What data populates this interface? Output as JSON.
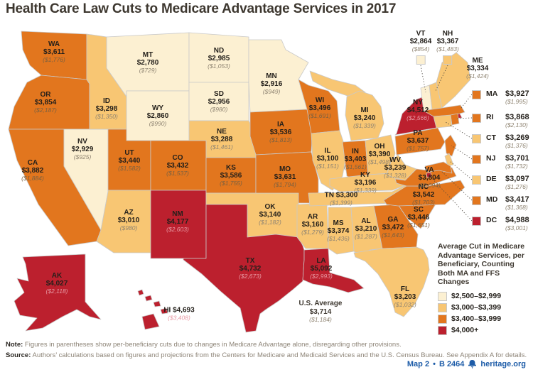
{
  "title": "Health Care Law Cuts to Medicare Advantage Services in 2017",
  "notes": {
    "note_label": "Note:",
    "note_body": "Figures in parentheses show per-beneficiary cuts due to changes in Medicare Advantage alone, disregarding other provisions.",
    "source_label": "Source:",
    "source_body": "Authors’ calculations based on figures and projections from the Centers for Medicare and Medicaid Services and the U.S. Census Bureau. See Appendix A for details."
  },
  "footer": {
    "map_ref": "Map 2",
    "separator": "•",
    "doc_ref": "B 2464",
    "site": "heritage.org",
    "brand_color": "#1d5ca8"
  },
  "chart_data": {
    "type": "choropleth_map",
    "region": "United States",
    "title": "Health Care Law Cuts to Medicare Advantage Services in 2017",
    "unit": "USD per beneficiary",
    "legend_title": "Average Cut in Medicare Advantage Services, per Beneficiary, Counting Both MA and FFS Changes",
    "bands": [
      {
        "label": "$2,500–$2,999",
        "color": "#fcf0d2",
        "min": 2500,
        "max": 2999
      },
      {
        "label": "$3,000–$3,399",
        "color": "#f8c673",
        "min": 3000,
        "max": 3399
      },
      {
        "label": "$3,400–$3,999",
        "color": "#e2761e",
        "min": 3400,
        "max": 3999
      },
      {
        "label": "$4,000+",
        "color": "#bc202e",
        "min": 4000,
        "max": null
      }
    ],
    "us_average": {
      "label": "U.S. Average",
      "cut": 3714,
      "ma_only_cut": 1184
    },
    "states": [
      {
        "abbr": "WA",
        "cut": 3611,
        "ma_only_cut": 1776
      },
      {
        "abbr": "OR",
        "cut": 3854,
        "ma_only_cut": 2187
      },
      {
        "abbr": "CA",
        "cut": 3882,
        "ma_only_cut": 1884
      },
      {
        "abbr": "NV",
        "cut": 2929,
        "ma_only_cut": 925
      },
      {
        "abbr": "ID",
        "cut": 3298,
        "ma_only_cut": 1350
      },
      {
        "abbr": "MT",
        "cut": 2780,
        "ma_only_cut": 729
      },
      {
        "abbr": "WY",
        "cut": 2860,
        "ma_only_cut": 990
      },
      {
        "abbr": "UT",
        "cut": 3440,
        "ma_only_cut": 1582
      },
      {
        "abbr": "CO",
        "cut": 3432,
        "ma_only_cut": 1537
      },
      {
        "abbr": "AZ",
        "cut": 3010,
        "ma_only_cut": 980
      },
      {
        "abbr": "NM",
        "cut": 4177,
        "ma_only_cut": 2603
      },
      {
        "abbr": "ND",
        "cut": 2985,
        "ma_only_cut": 1053
      },
      {
        "abbr": "SD",
        "cut": 2956,
        "ma_only_cut": 980
      },
      {
        "abbr": "NE",
        "cut": 3288,
        "ma_only_cut": 1461
      },
      {
        "abbr": "KS",
        "cut": 3586,
        "ma_only_cut": 1755
      },
      {
        "abbr": "OK",
        "cut": 3140,
        "ma_only_cut": 1182
      },
      {
        "abbr": "TX",
        "cut": 4732,
        "ma_only_cut": 2673
      },
      {
        "abbr": "MN",
        "cut": 2916,
        "ma_only_cut": 949
      },
      {
        "abbr": "IA",
        "cut": 3536,
        "ma_only_cut": 1813
      },
      {
        "abbr": "MO",
        "cut": 3631,
        "ma_only_cut": 1794
      },
      {
        "abbr": "AR",
        "cut": 3160,
        "ma_only_cut": 1279
      },
      {
        "abbr": "LA",
        "cut": 5092,
        "ma_only_cut": 2993
      },
      {
        "abbr": "WI",
        "cut": 3496,
        "ma_only_cut": 1691
      },
      {
        "abbr": "IL",
        "cut": 3100,
        "ma_only_cut": 1151
      },
      {
        "abbr": "IN",
        "cut": 3403,
        "ma_only_cut": 1561
      },
      {
        "abbr": "MI",
        "cut": 3240,
        "ma_only_cut": 1339
      },
      {
        "abbr": "OH",
        "cut": 3390,
        "ma_only_cut": 1498
      },
      {
        "abbr": "KY",
        "cut": 3196,
        "ma_only_cut": 1339
      },
      {
        "abbr": "TN",
        "cut": 3300,
        "ma_only_cut": 1399
      },
      {
        "abbr": "MS",
        "cut": 3374,
        "ma_only_cut": 1436
      },
      {
        "abbr": "AL",
        "cut": 3210,
        "ma_only_cut": 1287
      },
      {
        "abbr": "GA",
        "cut": 3472,
        "ma_only_cut": 1643
      },
      {
        "abbr": "FL",
        "cut": 3203,
        "ma_only_cut": 1032
      },
      {
        "abbr": "SC",
        "cut": 3446,
        "ma_only_cut": 1651
      },
      {
        "abbr": "NC",
        "cut": 3542,
        "ma_only_cut": 1703
      },
      {
        "abbr": "VA",
        "cut": 3804,
        "ma_only_cut": 2094
      },
      {
        "abbr": "WV",
        "cut": 3239,
        "ma_only_cut": 1328
      },
      {
        "abbr": "PA",
        "cut": 3637,
        "ma_only_cut": 1757
      },
      {
        "abbr": "NY",
        "cut": 4512,
        "ma_only_cut": 2566
      },
      {
        "abbr": "VT",
        "cut": 2864,
        "ma_only_cut": 854
      },
      {
        "abbr": "NH",
        "cut": 3367,
        "ma_only_cut": 1483
      },
      {
        "abbr": "ME",
        "cut": 3334,
        "ma_only_cut": 1424
      },
      {
        "abbr": "MA",
        "cut": 3927,
        "ma_only_cut": 1995
      },
      {
        "abbr": "RI",
        "cut": 3868,
        "ma_only_cut": 2130
      },
      {
        "abbr": "CT",
        "cut": 3269,
        "ma_only_cut": 1376
      },
      {
        "abbr": "NJ",
        "cut": 3701,
        "ma_only_cut": 1732
      },
      {
        "abbr": "DE",
        "cut": 3097,
        "ma_only_cut": 1276
      },
      {
        "abbr": "MD",
        "cut": 3417,
        "ma_only_cut": 1368
      },
      {
        "abbr": "DC",
        "cut": 4988,
        "ma_only_cut": 3001
      },
      {
        "abbr": "AK",
        "cut": 4027,
        "ma_only_cut": 2118
      },
      {
        "abbr": "HI",
        "cut": 4693,
        "ma_only_cut": 3408
      }
    ]
  }
}
